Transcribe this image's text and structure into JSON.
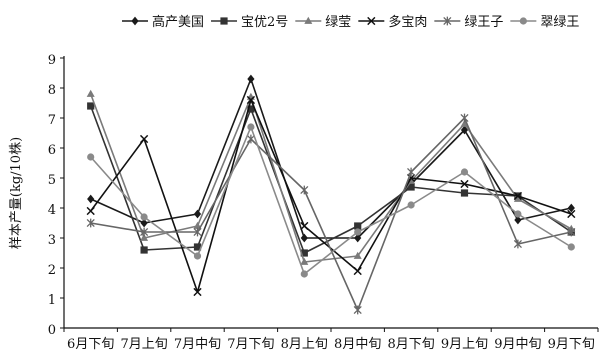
{
  "chart_data": {
    "type": "line",
    "title": "",
    "xlabel": "",
    "ylabel": "样本产量(kg/10株)",
    "ylim": [
      0,
      9
    ],
    "yticks": [
      0,
      1,
      2,
      3,
      4,
      5,
      6,
      7,
      8,
      9
    ],
    "grid": false,
    "legend_position": "top",
    "categories": [
      "6月下旬",
      "7月上旬",
      "7月中旬",
      "7月下旬",
      "8月上旬",
      "8月中旬",
      "8月下旬",
      "9月上旬",
      "9月中旬",
      "9月下旬"
    ],
    "series": [
      {
        "name": "高产美国",
        "marker": "diamond",
        "color": "#1a1a1a",
        "values": [
          4.3,
          3.5,
          3.8,
          8.3,
          3.0,
          3.0,
          4.8,
          6.6,
          3.6,
          4.0
        ]
      },
      {
        "name": "宝优2号",
        "marker": "square",
        "color": "#333333",
        "values": [
          7.4,
          2.6,
          2.7,
          7.3,
          2.5,
          3.4,
          4.7,
          4.5,
          4.4,
          3.2
        ]
      },
      {
        "name": "绿莹",
        "marker": "triangle",
        "color": "#7a7a7a",
        "values": [
          7.8,
          3.0,
          3.4,
          7.7,
          2.2,
          2.4,
          4.9,
          6.8,
          4.3,
          3.3
        ]
      },
      {
        "name": "多宝肉",
        "marker": "x",
        "color": "#111111",
        "values": [
          3.9,
          6.3,
          1.2,
          7.6,
          3.4,
          1.9,
          5.0,
          4.8,
          4.4,
          3.8
        ]
      },
      {
        "name": "绿王子",
        "marker": "star",
        "color": "#666666",
        "values": [
          3.5,
          3.2,
          3.2,
          6.3,
          4.6,
          0.6,
          5.2,
          7.0,
          2.8,
          3.2
        ]
      },
      {
        "name": "翠绿王",
        "marker": "circle",
        "color": "#8a8a8a",
        "values": [
          5.7,
          3.7,
          2.4,
          6.7,
          1.8,
          3.2,
          4.1,
          5.2,
          3.8,
          2.7
        ]
      }
    ]
  }
}
